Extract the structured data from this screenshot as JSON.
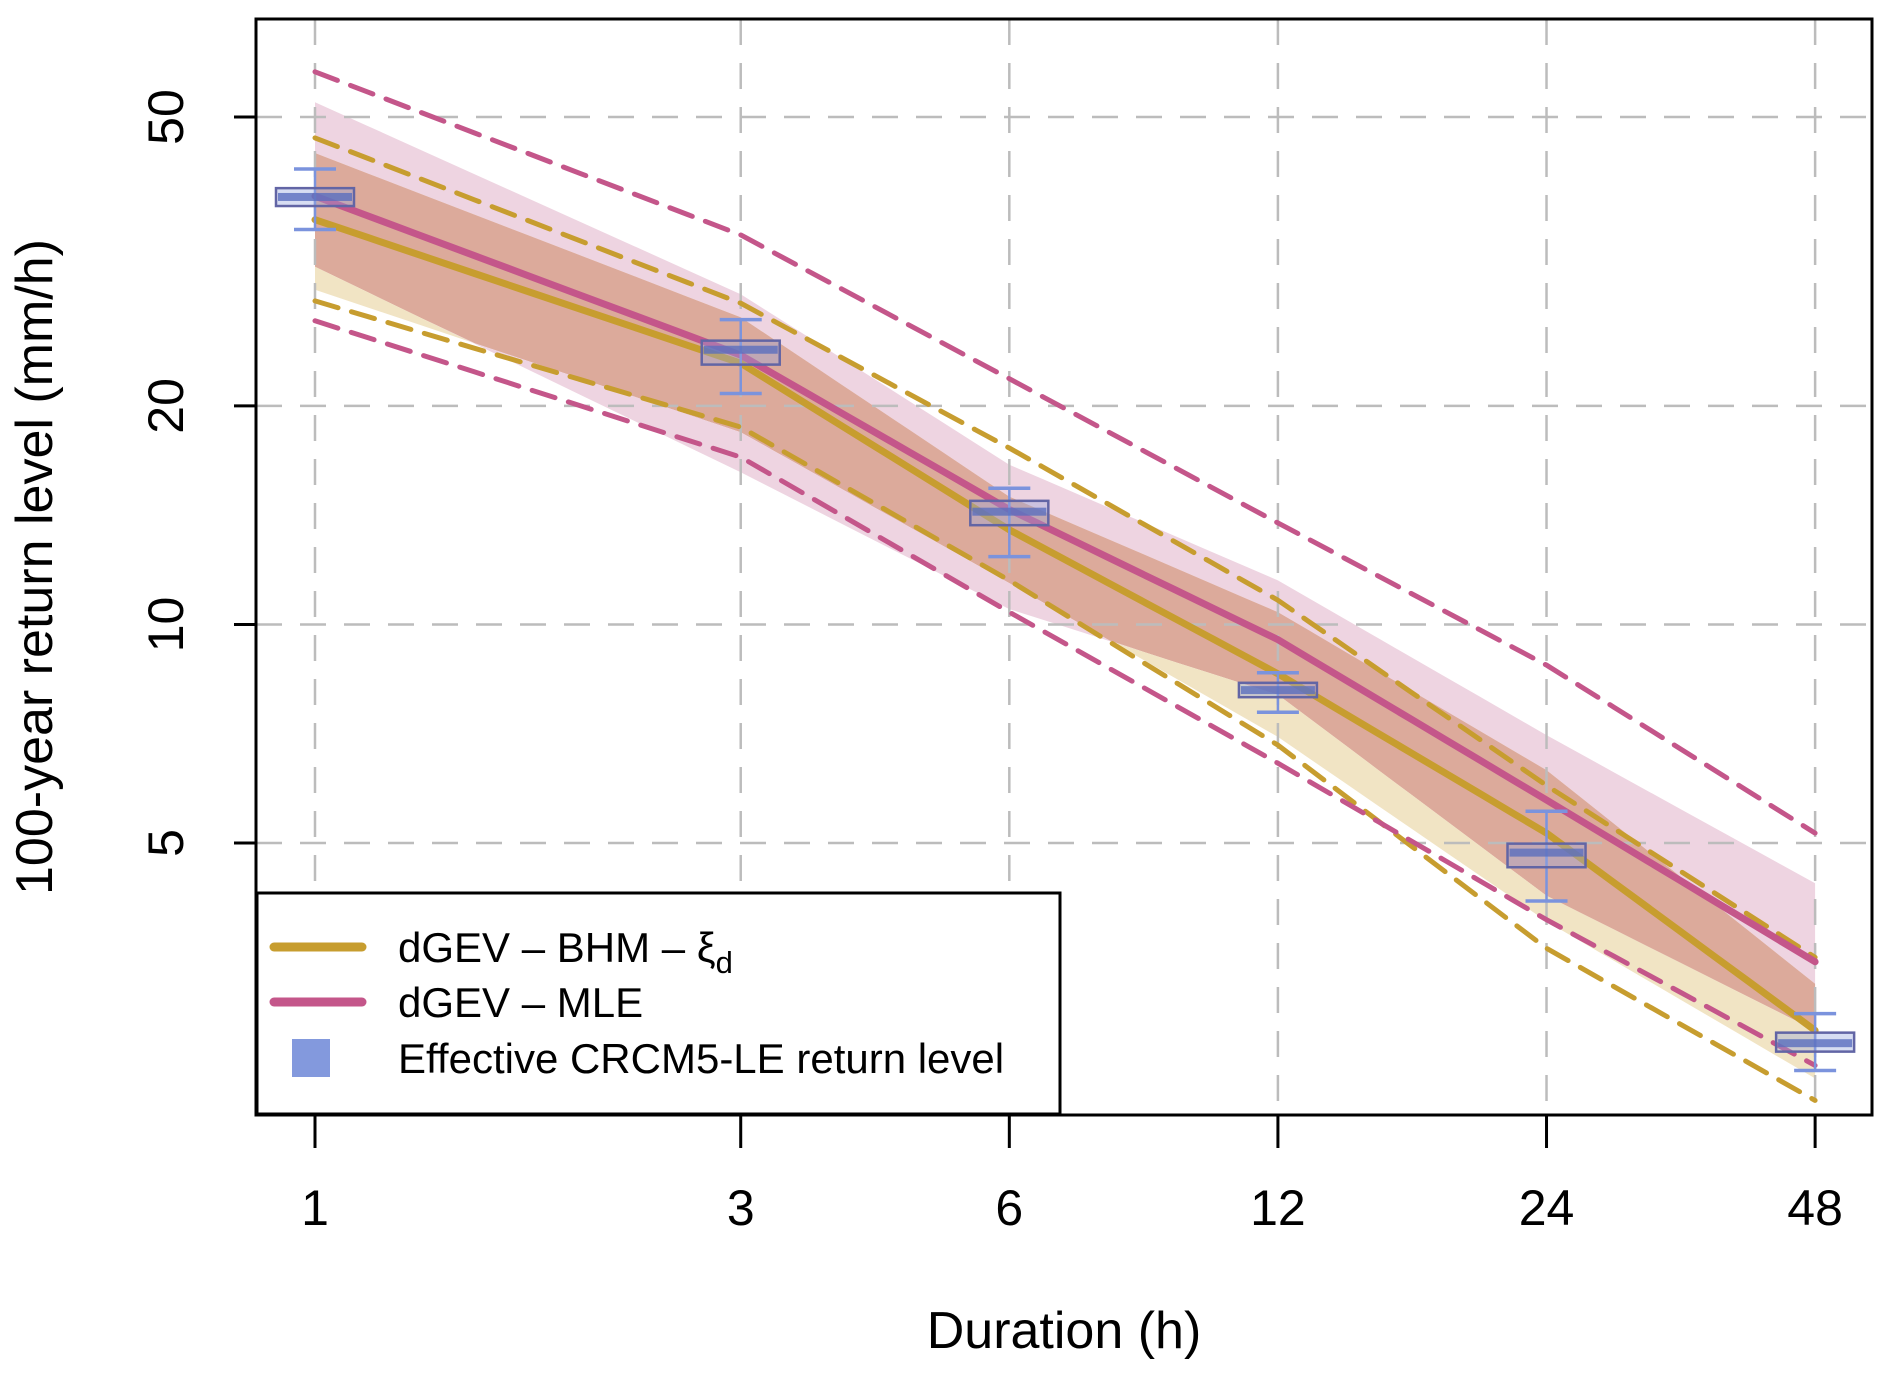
{
  "figure": {
    "background": "#ffffff",
    "axes": {
      "x": {
        "title": "Duration (h)",
        "scale": "log2",
        "ticks": [
          {
            "value": 1,
            "label": "1"
          },
          {
            "value": 3,
            "label": "3"
          },
          {
            "value": 6,
            "label": "6"
          },
          {
            "value": 12,
            "label": "12"
          },
          {
            "value": 24,
            "label": "24"
          },
          {
            "value": 48,
            "label": "48"
          }
        ]
      },
      "y": {
        "title": "100-year return level (mm/h)",
        "scale": "log10",
        "ticks": [
          {
            "value": 50,
            "label": "50"
          },
          {
            "value": 20,
            "label": "20"
          },
          {
            "value": 10,
            "label": "10"
          },
          {
            "value": 5,
            "label": "5"
          }
        ]
      }
    },
    "legend": {
      "items": [
        {
          "type": "line",
          "color": "#c79d2f",
          "label": "dGEV – BHM – ξ",
          "label_sub": "d"
        },
        {
          "type": "line",
          "color": "#c4568a",
          "label": "dGEV – MLE",
          "label_sub": ""
        },
        {
          "type": "square",
          "color": "#8399dd",
          "label": "Effective CRCM5-LE return level",
          "label_sub": ""
        }
      ]
    },
    "colors": {
      "axis": "#000000",
      "grid": "#bcbcbc",
      "band_pink_only": "#eed4e1",
      "band_overlap": "#dcaa9b",
      "band_gold_only": "#f1e4c4",
      "box_fill": "rgba(150,165,220,0.38)",
      "box_border": "#6265a5",
      "box_median": "rgba(90,110,190,0.8)",
      "whisker": "#7b93dd"
    }
  },
  "chart_data": {
    "type": "line",
    "title": "",
    "xlabel": "Duration (h)",
    "ylabel": "100-year return level (mm/h)",
    "x_scale": "log2",
    "y_scale": "log10",
    "x": [
      1,
      3,
      6,
      12,
      24,
      48
    ],
    "x_gridlines": [
      1,
      3,
      6,
      12,
      24,
      48
    ],
    "y_gridlines": [
      50,
      20,
      10,
      5
    ],
    "xlim": [
      1,
      48
    ],
    "ylim": [
      2.1,
      68
    ],
    "legend_position": "bottom-left",
    "grid": true,
    "series": [
      {
        "name": "dGEV – BHM – ξd",
        "color": "#c79d2f",
        "values": [
          36.1,
          22.9,
          13.5,
          8.55,
          5.16,
          2.76
        ],
        "band_upper": [
          44.6,
          26.5,
          15.0,
          10.4,
          6.3,
          3.2
        ],
        "band_lower": [
          28.9,
          18.4,
          11.4,
          7.0,
          3.9,
          2.37
        ],
        "dashed_upper": [
          46.8,
          27.7,
          17.5,
          10.8,
          6.0,
          3.48
        ],
        "dashed_lower": [
          27.9,
          18.7,
          11.5,
          6.82,
          3.58,
          2.21
        ]
      },
      {
        "name": "dGEV – MLE",
        "color": "#c4568a",
        "values": [
          38.9,
          23.5,
          14.4,
          9.53,
          5.73,
          3.43
        ],
        "band_upper": [
          52.4,
          28.5,
          16.6,
          11.5,
          7.04,
          4.4
        ],
        "band_lower": [
          31.1,
          16.2,
          10.5,
          8.0,
          4.23,
          2.76
        ],
        "dashed_upper": [
          57.7,
          34.4,
          21.8,
          13.8,
          8.79,
          5.16
        ],
        "dashed_lower": [
          26.2,
          17.0,
          10.4,
          6.44,
          3.92,
          2.47
        ]
      }
    ],
    "boxplots": {
      "name": "Effective CRCM5-LE return level",
      "items": [
        {
          "x": 1,
          "whisker_low": 35.0,
          "q1": 37.7,
          "median": 38.8,
          "q3": 39.9,
          "whisker_high": 42.4
        },
        {
          "x": 3,
          "whisker_low": 20.8,
          "q1": 22.8,
          "median": 23.9,
          "q3": 24.6,
          "whisker_high": 26.3
        },
        {
          "x": 6,
          "whisker_low": 12.4,
          "q1": 13.7,
          "median": 14.3,
          "q3": 14.8,
          "whisker_high": 15.4
        },
        {
          "x": 12,
          "whisker_low": 7.57,
          "q1": 7.94,
          "median": 8.12,
          "q3": 8.31,
          "whisker_high": 8.58
        },
        {
          "x": 24,
          "whisker_low": 4.16,
          "q1": 4.63,
          "median": 4.85,
          "q3": 4.99,
          "whisker_high": 5.53
        },
        {
          "x": 48,
          "whisker_low": 2.43,
          "q1": 2.58,
          "median": 2.65,
          "q3": 2.74,
          "whisker_high": 2.91
        }
      ]
    }
  }
}
